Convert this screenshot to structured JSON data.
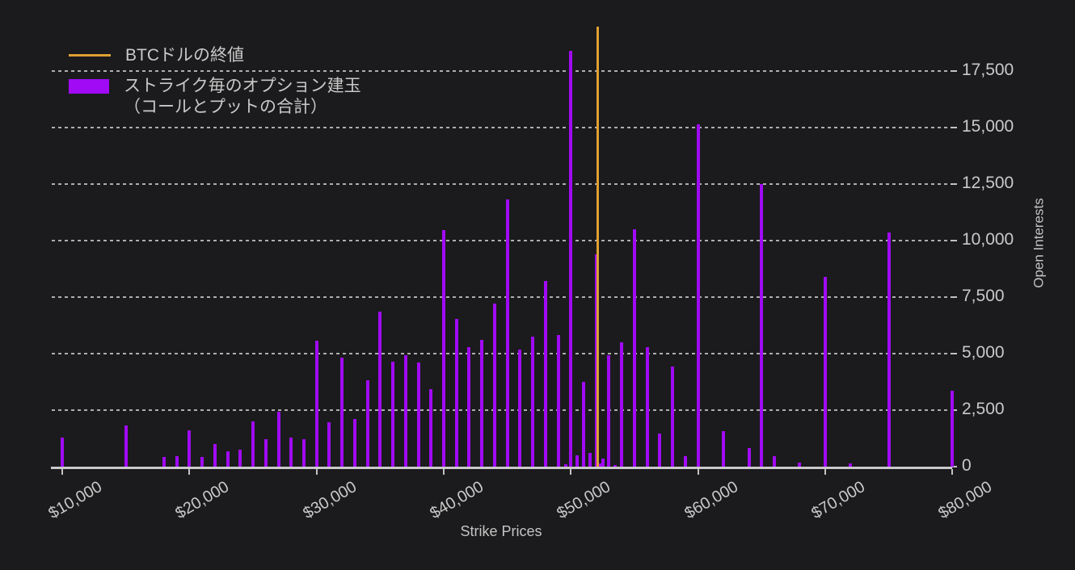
{
  "legend": {
    "btc_close_label": "BTCドルの終値",
    "oi_label_line1": "ストライク毎のオプション建玉",
    "oi_label_line2": "（コールとプットの合計）"
  },
  "colors": {
    "background": "#1b1b1d",
    "bar": "#a10af5",
    "btc_line": "#dfa133",
    "axis": "#c9c9c9",
    "text": "#c7c7c7"
  },
  "chart_data": {
    "type": "bar",
    "title": "",
    "xlabel": "Strike Prices",
    "ylabel": "Open Interests",
    "legend_position": "top-left",
    "grid": "horizontal-dashed",
    "ylim": [
      0,
      19500
    ],
    "xlim": [
      9200,
      80200
    ],
    "y_ticks": [
      {
        "value": 0,
        "label": "0"
      },
      {
        "value": 2500,
        "label": "2,500"
      },
      {
        "value": 5000,
        "label": "5,000"
      },
      {
        "value": 7500,
        "label": "7,500"
      },
      {
        "value": 10000,
        "label": "10,000"
      },
      {
        "value": 12500,
        "label": "12,500"
      },
      {
        "value": 15000,
        "label": "15,000"
      },
      {
        "value": 17500,
        "label": "17,500"
      }
    ],
    "x_ticks": [
      {
        "value": 10000,
        "label": "$10,000"
      },
      {
        "value": 20000,
        "label": "$20,000"
      },
      {
        "value": 30000,
        "label": "$30,000"
      },
      {
        "value": 40000,
        "label": "$40,000"
      },
      {
        "value": 50000,
        "label": "$50,000"
      },
      {
        "value": 60000,
        "label": "$60,000"
      },
      {
        "value": 70000,
        "label": "$70,000"
      },
      {
        "value": 80000,
        "label": "$80,000"
      }
    ],
    "btc_close_line": {
      "strike": 52100
    },
    "bars": [
      {
        "strike": 10000,
        "oi": 1300
      },
      {
        "strike": 15000,
        "oi": 1830
      },
      {
        "strike": 18000,
        "oi": 430
      },
      {
        "strike": 19000,
        "oi": 460
      },
      {
        "strike": 20000,
        "oi": 1600
      },
      {
        "strike": 21000,
        "oi": 430
      },
      {
        "strike": 22000,
        "oi": 990
      },
      {
        "strike": 23000,
        "oi": 690
      },
      {
        "strike": 24000,
        "oi": 760
      },
      {
        "strike": 25000,
        "oi": 2000
      },
      {
        "strike": 26000,
        "oi": 1200
      },
      {
        "strike": 27000,
        "oi": 2430
      },
      {
        "strike": 28000,
        "oi": 1290
      },
      {
        "strike": 29000,
        "oi": 1200
      },
      {
        "strike": 30000,
        "oi": 5570
      },
      {
        "strike": 31000,
        "oi": 1950
      },
      {
        "strike": 32000,
        "oi": 4830
      },
      {
        "strike": 33000,
        "oi": 2120
      },
      {
        "strike": 34000,
        "oi": 3820
      },
      {
        "strike": 35000,
        "oi": 6850
      },
      {
        "strike": 36000,
        "oi": 4650
      },
      {
        "strike": 37000,
        "oi": 4920
      },
      {
        "strike": 38000,
        "oi": 4600
      },
      {
        "strike": 39000,
        "oi": 3430
      },
      {
        "strike": 40000,
        "oi": 10460
      },
      {
        "strike": 41000,
        "oi": 6540
      },
      {
        "strike": 42000,
        "oi": 5300
      },
      {
        "strike": 43000,
        "oi": 5610
      },
      {
        "strike": 44000,
        "oi": 7210
      },
      {
        "strike": 45000,
        "oi": 11830
      },
      {
        "strike": 46000,
        "oi": 5170
      },
      {
        "strike": 47000,
        "oi": 5750
      },
      {
        "strike": 48000,
        "oi": 8200
      },
      {
        "strike": 49000,
        "oi": 5820
      },
      {
        "strike": 49600,
        "oi": 120
      },
      {
        "strike": 50000,
        "oi": 18400
      },
      {
        "strike": 50500,
        "oi": 500
      },
      {
        "strike": 51000,
        "oi": 3750
      },
      {
        "strike": 51500,
        "oi": 620
      },
      {
        "strike": 52000,
        "oi": 9380
      },
      {
        "strike": 52300,
        "oi": 140
      },
      {
        "strike": 52500,
        "oi": 360
      },
      {
        "strike": 53000,
        "oi": 4920
      },
      {
        "strike": 53500,
        "oi": 60
      },
      {
        "strike": 54000,
        "oi": 5490
      },
      {
        "strike": 55000,
        "oi": 10490
      },
      {
        "strike": 56000,
        "oi": 5270
      },
      {
        "strike": 57000,
        "oi": 1460
      },
      {
        "strike": 58000,
        "oi": 4420
      },
      {
        "strike": 59000,
        "oi": 460
      },
      {
        "strike": 60000,
        "oi": 15130
      },
      {
        "strike": 62000,
        "oi": 1580
      },
      {
        "strike": 64000,
        "oi": 810
      },
      {
        "strike": 65000,
        "oi": 12490
      },
      {
        "strike": 66000,
        "oi": 450
      },
      {
        "strike": 68000,
        "oi": 190
      },
      {
        "strike": 70000,
        "oi": 8400
      },
      {
        "strike": 72000,
        "oi": 150
      },
      {
        "strike": 75000,
        "oi": 10370
      },
      {
        "strike": 80000,
        "oi": 3350
      }
    ]
  }
}
